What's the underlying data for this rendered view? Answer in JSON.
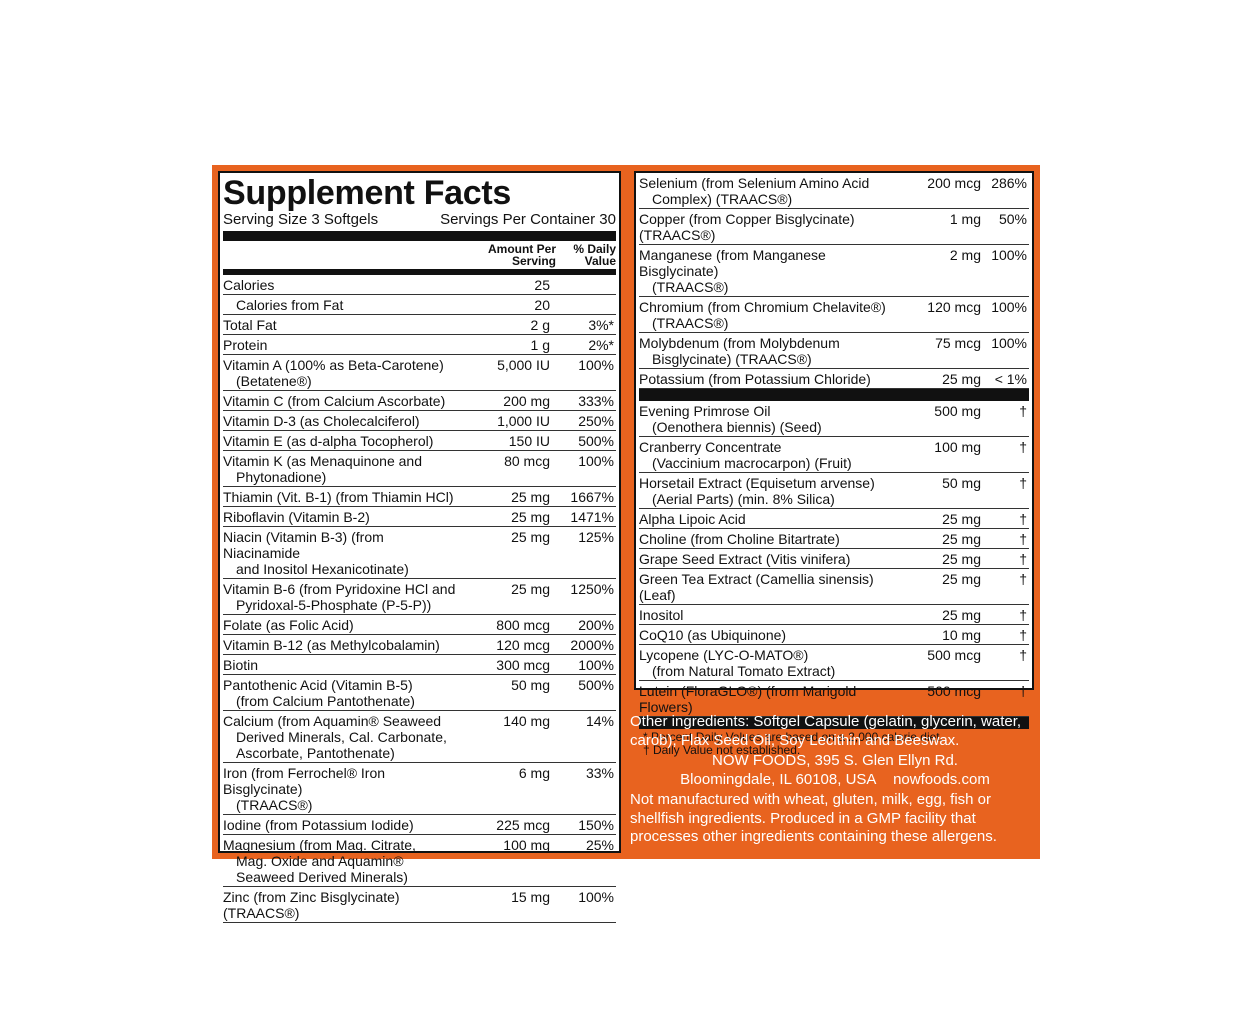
{
  "title": "Supplement Facts",
  "serving_size": "Serving Size 3 Softgels",
  "servings_per_container": "Servings Per Container 30",
  "col_amount": "Amount Per Serving",
  "col_dv": "% Daily Value",
  "left_rows": [
    {
      "name": "Calories",
      "cont": "",
      "amount": "25",
      "dv": ""
    },
    {
      "name": "Calories from Fat",
      "cont": "",
      "amount": "20",
      "dv": ""
    },
    {
      "name": "Total Fat",
      "cont": "",
      "amount": "2 g",
      "dv": "3%*"
    },
    {
      "name": "Protein",
      "cont": "",
      "amount": "1 g",
      "dv": "2%*"
    },
    {
      "name": "Vitamin A (100% as Beta-Carotene)",
      "cont": "(Betatene®)",
      "amount": "5,000 IU",
      "dv": "100%"
    },
    {
      "name": "Vitamin C (from Calcium Ascorbate)",
      "cont": "",
      "amount": "200 mg",
      "dv": "333%"
    },
    {
      "name": "Vitamin D-3 (as Cholecalciferol)",
      "cont": "",
      "amount": "1,000 IU",
      "dv": "250%"
    },
    {
      "name": "Vitamin E (as d-alpha Tocopherol)",
      "cont": "",
      "amount": "150 IU",
      "dv": "500%"
    },
    {
      "name": "Vitamin K (as Menaquinone and",
      "cont": "Phytonadione)",
      "amount": "80 mcg",
      "dv": "100%"
    },
    {
      "name": "Thiamin (Vit. B-1) (from Thiamin HCl)",
      "cont": "",
      "amount": "25 mg",
      "dv": "1667%"
    },
    {
      "name": "Riboflavin (Vitamin B-2)",
      "cont": "",
      "amount": "25 mg",
      "dv": "1471%"
    },
    {
      "name": "Niacin (Vitamin B-3) (from Niacinamide",
      "cont": "and Inositol Hexanicotinate)",
      "amount": "25 mg",
      "dv": "125%"
    },
    {
      "name": "Vitamin B-6 (from Pyridoxine HCl and",
      "cont": "Pyridoxal-5-Phosphate (P-5-P))",
      "amount": "25 mg",
      "dv": "1250%"
    },
    {
      "name": "Folate (as Folic Acid)",
      "cont": "",
      "amount": "800 mcg",
      "dv": "200%"
    },
    {
      "name": "Vitamin B-12 (as Methylcobalamin)",
      "cont": "",
      "amount": "120 mcg",
      "dv": "2000%"
    },
    {
      "name": "Biotin",
      "cont": "",
      "amount": "300 mcg",
      "dv": "100%"
    },
    {
      "name": "Pantothenic Acid (Vitamin B-5)",
      "cont": "(from Calcium Pantothenate)",
      "amount": "50 mg",
      "dv": "500%"
    },
    {
      "name": "Calcium (from Aquamin® Seaweed",
      "cont": "Derived Minerals, Cal. Carbonate, Ascorbate, Pantothenate)",
      "amount": "140 mg",
      "dv": "14%"
    },
    {
      "name": "Iron (from Ferrochel® Iron Bisglycinate)",
      "cont": "(TRAACS®)",
      "amount": "6 mg",
      "dv": "33%"
    },
    {
      "name": "Iodine (from Potassium Iodide)",
      "cont": "",
      "amount": "225 mcg",
      "dv": "150%"
    },
    {
      "name": "Magnesium (from Mag. Citrate,",
      "cont": "Mag. Oxide and Aquamin® Seaweed Derived Minerals)",
      "amount": "100 mg",
      "dv": "25%"
    },
    {
      "name": "Zinc (from Zinc Bisglycinate) (TRAACS®)",
      "cont": "",
      "amount": "15 mg",
      "dv": "100%"
    }
  ],
  "right_rows_a": [
    {
      "name": "Selenium (from Selenium Amino Acid",
      "cont": "Complex) (TRAACS®)",
      "amount": "200 mcg",
      "dv": "286%"
    },
    {
      "name": "Copper (from Copper Bisglycinate) (TRAACS®)",
      "cont": "",
      "amount": "1 mg",
      "dv": "50%"
    },
    {
      "name": "Manganese (from Manganese Bisglycinate)",
      "cont": "(TRAACS®)",
      "amount": "2 mg",
      "dv": "100%"
    },
    {
      "name": "Chromium (from Chromium Chelavite®)",
      "cont": "(TRAACS®)",
      "amount": "120 mcg",
      "dv": "100%"
    },
    {
      "name": "Molybdenum (from Molybdenum",
      "cont": "Bisglycinate) (TRAACS®)",
      "amount": "75 mcg",
      "dv": "100%"
    },
    {
      "name": "Potassium (from Potassium Chloride)",
      "cont": "",
      "amount": "25 mg",
      "dv": "< 1%"
    }
  ],
  "right_rows_b": [
    {
      "name": "Evening Primrose Oil",
      "cont": "(Oenothera biennis) (Seed)",
      "amount": "500 mg",
      "dv": "†"
    },
    {
      "name": "Cranberry Concentrate",
      "cont": "(Vaccinium macrocarpon) (Fruit)",
      "amount": "100 mg",
      "dv": "†"
    },
    {
      "name": "Horsetail Extract (Equisetum arvense)",
      "cont": "(Aerial Parts) (min. 8% Silica)",
      "amount": "50 mg",
      "dv": "†"
    },
    {
      "name": "Alpha Lipoic Acid",
      "cont": "",
      "amount": "25 mg",
      "dv": "†"
    },
    {
      "name": "Choline (from Choline Bitartrate)",
      "cont": "",
      "amount": "25 mg",
      "dv": "†"
    },
    {
      "name": "Grape Seed Extract (Vitis vinifera)",
      "cont": "",
      "amount": "25 mg",
      "dv": "†"
    },
    {
      "name": "Green Tea Extract (Camellia sinensis) (Leaf)",
      "cont": "",
      "amount": "25 mg",
      "dv": "†"
    },
    {
      "name": "Inositol",
      "cont": "",
      "amount": "25 mg",
      "dv": "†"
    },
    {
      "name": "CoQ10 (as Ubiquinone)",
      "cont": "",
      "amount": "10 mg",
      "dv": "†"
    },
    {
      "name": "Lycopene (LYC-O-MATO®)",
      "cont": "(from Natural Tomato Extract)",
      "amount": "500 mcg",
      "dv": "†"
    },
    {
      "name": "Lutein (FloraGLO®) (from Marigold Flowers)",
      "cont": "",
      "amount": "500 mcg",
      "dv": "†"
    }
  ],
  "footnote1": "* Percent Daily Values are based on a 2,000 calorie diet.",
  "footnote2": "† Daily Value not established.",
  "other_ingredients": "Other ingredients: Softgel Capsule (gelatin, glycerin, water, carob), Flax Seed Oil, Soy Lecithin and Beeswax.",
  "company": "NOW FOODS, 395 S. Glen Ellyn Rd.",
  "address": "Bloomingdale, IL 60108, USA",
  "website": "nowfoods.com",
  "allergen": "Not manufactured with wheat, gluten, milk, egg, fish or shellfish ingredients. Produced in a GMP facility that processes other ingredients containing these allergens.",
  "colors": {
    "orange": "#e8631f",
    "black": "#111111"
  }
}
